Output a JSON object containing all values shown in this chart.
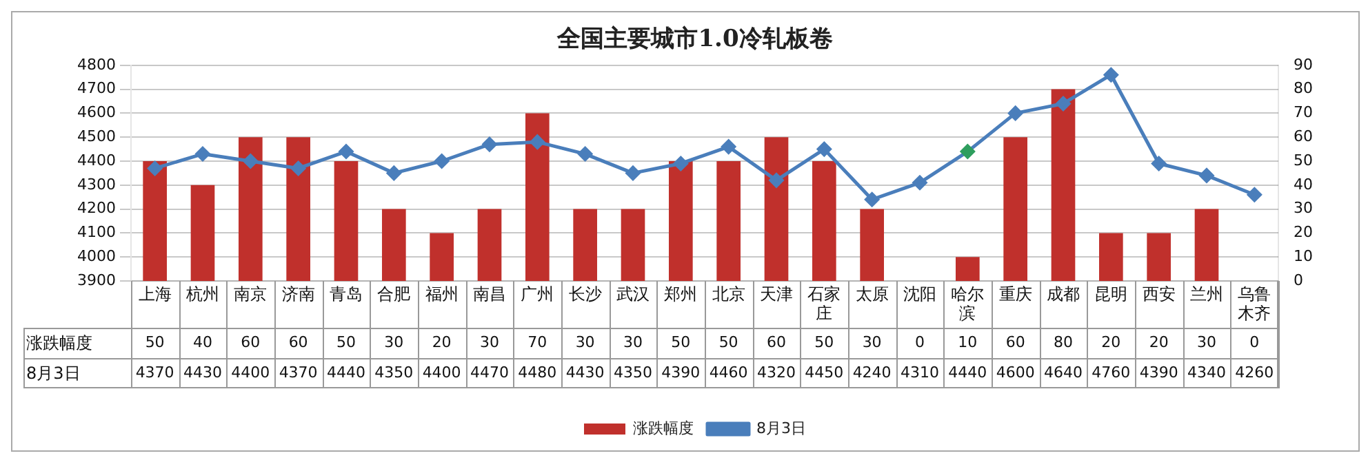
{
  "chart_data": {
    "type": "bar",
    "title": "全国主要城市1.0冷轧板卷",
    "categories": [
      "上海",
      "杭州",
      "南京",
      "济南",
      "青岛",
      "合肥",
      "福州",
      "南昌",
      "广州",
      "长沙",
      "武汉",
      "郑州",
      "北京",
      "天津",
      "石家庄",
      "太原",
      "沈阳",
      "哈尔滨",
      "重庆",
      "成都",
      "昆明",
      "西安",
      "兰州",
      "乌鲁木齐"
    ],
    "series": [
      {
        "name": "涨跌幅度",
        "axis": "y2",
        "color": "#c0302c",
        "values": [
          50,
          40,
          60,
          60,
          50,
          30,
          20,
          30,
          70,
          30,
          30,
          50,
          50,
          60,
          50,
          30,
          0,
          10,
          60,
          80,
          20,
          20,
          30,
          0
        ]
      },
      {
        "name": "8月3日",
        "type": "line",
        "color": "#4a7ebb",
        "colors": [
          "#4a7ebb",
          "#4a7ebb",
          "#4a7ebb",
          "#4a7ebb",
          "#4a7ebb",
          "#4a7ebb",
          "#4a7ebb",
          "#4a7ebb",
          "#4a7ebb",
          "#4a7ebb",
          "#4a7ebb",
          "#4a7ebb",
          "#4a7ebb",
          "#4a7ebb",
          "#4a7ebb",
          "#4a7ebb",
          "#4a7ebb",
          "#2e9e5e",
          "#4a7ebb",
          "#4a7ebb",
          "#4a7ebb",
          "#4a7ebb",
          "#4a7ebb",
          "#4a7ebb"
        ],
        "values": [
          4370,
          4430,
          4400,
          4370,
          4440,
          4350,
          4400,
          4470,
          4480,
          4430,
          4350,
          4390,
          4460,
          4320,
          4450,
          4240,
          4310,
          4440,
          4600,
          4640,
          4760,
          4390,
          4340,
          4260
        ]
      }
    ],
    "ylim": [
      3900,
      4800
    ],
    "yticks": [
      3900,
      4000,
      4100,
      4200,
      4300,
      4400,
      4500,
      4600,
      4700,
      4800
    ],
    "y2lim": [
      0,
      90
    ],
    "y2ticks": [
      0,
      10,
      20,
      30,
      40,
      50,
      60,
      70,
      80,
      90
    ],
    "marker": "diamond",
    "grid": "y",
    "legend": "bottom",
    "data_labels": true
  }
}
